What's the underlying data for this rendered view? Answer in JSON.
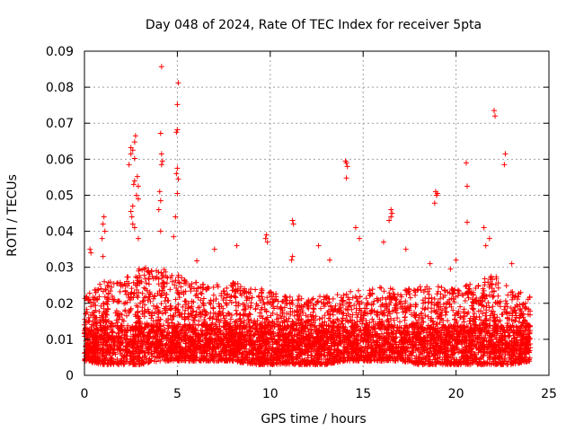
{
  "chart_data": {
    "type": "scatter",
    "title": "Day 048 of 2024, Rate Of TEC Index for receiver 5pta",
    "xlabel": "GPS time / hours",
    "ylabel": "ROTI / TECUs",
    "xlim": [
      0,
      25
    ],
    "ylim": [
      0,
      0.09
    ],
    "x_ticks": [
      "0",
      "5",
      "10",
      "15",
      "20",
      "25"
    ],
    "y_ticks": [
      "0",
      "0.01",
      "0.02",
      "0.03",
      "0.04",
      "0.05",
      "0.06",
      "0.07",
      "0.08",
      "0.09"
    ],
    "grid": true,
    "marker": "+",
    "color": "#ff0000",
    "x_data_range": [
      0,
      24
    ],
    "series": [
      {
        "points": [
          [
            4.15,
            0.0857
          ],
          [
            5.05,
            0.0812
          ],
          [
            5.0,
            0.0752
          ],
          [
            5.0,
            0.0682
          ],
          [
            4.95,
            0.0675
          ],
          [
            4.1,
            0.0672
          ],
          [
            2.75,
            0.0665
          ],
          [
            2.7,
            0.0648
          ],
          [
            2.5,
            0.0632
          ],
          [
            2.6,
            0.0625
          ],
          [
            2.5,
            0.0615
          ],
          [
            4.15,
            0.0615
          ],
          [
            2.7,
            0.0602
          ],
          [
            4.2,
            0.0595
          ],
          [
            2.4,
            0.0585
          ],
          [
            4.15,
            0.0585
          ],
          [
            5.0,
            0.0575
          ],
          [
            4.95,
            0.056
          ],
          [
            2.85,
            0.0552
          ],
          [
            5.05,
            0.0545
          ],
          [
            2.7,
            0.054
          ],
          [
            2.65,
            0.053
          ],
          [
            2.9,
            0.0525
          ],
          [
            4.05,
            0.051
          ],
          [
            5.0,
            0.0505
          ],
          [
            2.8,
            0.05
          ],
          [
            2.9,
            0.049
          ],
          [
            4.1,
            0.0485
          ],
          [
            2.6,
            0.047
          ],
          [
            4.0,
            0.046
          ],
          [
            2.5,
            0.0455
          ],
          [
            2.55,
            0.044
          ],
          [
            4.9,
            0.044
          ],
          [
            2.6,
            0.042
          ],
          [
            2.7,
            0.041
          ],
          [
            4.1,
            0.04
          ],
          [
            4.8,
            0.0385
          ],
          [
            2.9,
            0.038
          ],
          [
            1.05,
            0.044
          ],
          [
            1.0,
            0.042
          ],
          [
            1.1,
            0.04
          ],
          [
            0.95,
            0.038
          ],
          [
            0.3,
            0.035
          ],
          [
            0.35,
            0.034
          ],
          [
            1.0,
            0.033
          ],
          [
            14.05,
            0.0595
          ],
          [
            14.1,
            0.059
          ],
          [
            14.15,
            0.058
          ],
          [
            14.1,
            0.0548
          ],
          [
            14.6,
            0.041
          ],
          [
            11.2,
            0.043
          ],
          [
            11.25,
            0.042
          ],
          [
            9.8,
            0.039
          ],
          [
            9.75,
            0.038
          ],
          [
            9.85,
            0.037
          ],
          [
            11.2,
            0.033
          ],
          [
            11.15,
            0.032
          ],
          [
            6.05,
            0.0318
          ],
          [
            7.0,
            0.035
          ],
          [
            8.2,
            0.036
          ],
          [
            12.6,
            0.036
          ],
          [
            13.2,
            0.032
          ],
          [
            14.8,
            0.038
          ],
          [
            16.5,
            0.046
          ],
          [
            16.55,
            0.045
          ],
          [
            16.5,
            0.044
          ],
          [
            16.4,
            0.043
          ],
          [
            16.1,
            0.037
          ],
          [
            17.3,
            0.035
          ],
          [
            18.9,
            0.051
          ],
          [
            19.0,
            0.0505
          ],
          [
            18.95,
            0.05
          ],
          [
            18.85,
            0.0478
          ],
          [
            22.05,
            0.0735
          ],
          [
            22.1,
            0.072
          ],
          [
            22.65,
            0.0615
          ],
          [
            22.6,
            0.0585
          ],
          [
            20.55,
            0.059
          ],
          [
            20.6,
            0.0525
          ],
          [
            20.6,
            0.0425
          ],
          [
            21.5,
            0.041
          ],
          [
            21.8,
            0.038
          ],
          [
            21.6,
            0.036
          ],
          [
            20.0,
            0.032
          ],
          [
            18.6,
            0.031
          ],
          [
            19.7,
            0.0295
          ],
          [
            23.0,
            0.031
          ]
        ]
      }
    ],
    "band_envelope": {
      "x": [
        0,
        1,
        2,
        3,
        4,
        5,
        6,
        7,
        8,
        9,
        10,
        11,
        12,
        13,
        14,
        15,
        16,
        17,
        18,
        19,
        20,
        21,
        22,
        23,
        24
      ],
      "low": [
        0.004,
        0.003,
        0.003,
        0.003,
        0.004,
        0.004,
        0.004,
        0.004,
        0.004,
        0.003,
        0.003,
        0.003,
        0.003,
        0.003,
        0.004,
        0.004,
        0.004,
        0.004,
        0.003,
        0.003,
        0.003,
        0.003,
        0.003,
        0.003,
        0.004
      ],
      "high": [
        0.022,
        0.026,
        0.027,
        0.03,
        0.03,
        0.028,
        0.026,
        0.025,
        0.026,
        0.024,
        0.024,
        0.022,
        0.022,
        0.022,
        0.023,
        0.024,
        0.025,
        0.024,
        0.025,
        0.025,
        0.024,
        0.026,
        0.028,
        0.024,
        0.022
      ]
    }
  }
}
